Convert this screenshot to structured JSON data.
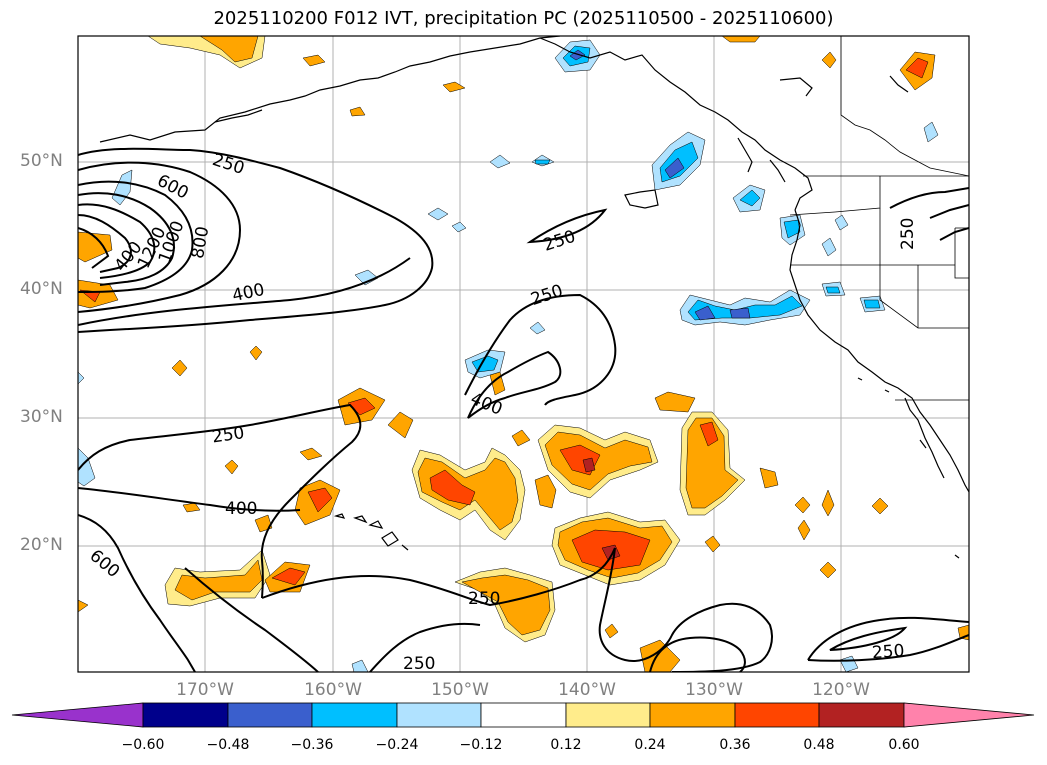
{
  "title": "2025110200 F012 IVT, precipitation PC (2025110500 - 2025110600)",
  "axes": {
    "lat_labels": [
      "50°N",
      "40°N",
      "30°N",
      "20°N"
    ],
    "lon_labels": [
      "170°W",
      "160°W",
      "150°W",
      "140°W",
      "130°W",
      "120°W"
    ]
  },
  "contour_labels": {
    "l1": "250",
    "l2": "600",
    "l3": "400",
    "l4": "1200",
    "l5": "1000",
    "l6": "800",
    "l7": "400",
    "l8": "250",
    "l9": "250",
    "l10": "400",
    "l11": "250",
    "l12": "400",
    "l13": "600",
    "l14": "250",
    "l15": "250",
    "l16": "250",
    "l17": "250"
  },
  "colorbar": {
    "ticks": [
      "−0.60",
      "−0.48",
      "−0.36",
      "−0.24",
      "−0.12",
      "0.12",
      "0.24",
      "0.36",
      "0.48",
      "0.60"
    ],
    "colors": [
      "#9932CC",
      "#00008B",
      "#3A5FCD",
      "#00BFFF",
      "#B0E2FF",
      "#FFFFFF",
      "#FFEC8B",
      "#FFA500",
      "#FF4500",
      "#B22222",
      "#FF82AB"
    ]
  }
}
